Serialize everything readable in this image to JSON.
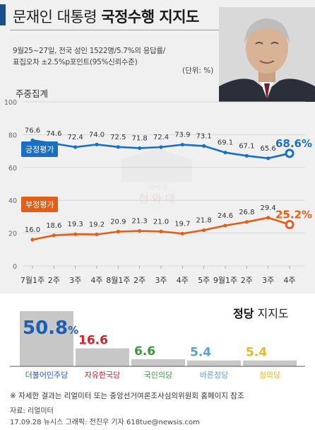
{
  "header": {
    "title_plain": "문재인 대통령 ",
    "title_bold": "국정수행 지지도",
    "meta_line1": "9월25~27일, 전국 성인 1522명/5.7%의 응답률/",
    "meta_line2": "표집오차 ±2.5%p포인트(95%신뢰수준)",
    "unit": "(단위: %)"
  },
  "colors": {
    "approve": "#1a6fc0",
    "disapprove": "#e0601a",
    "header_bar": "#1a4f8b",
    "party_bar": "#c7c7c7"
  },
  "weekly_label": "주중집계",
  "chart_data": {
    "type": "line",
    "categories": [
      "7월1주",
      "2주",
      "3주",
      "4주",
      "8월1주",
      "2주",
      "3주",
      "4주",
      "5주",
      "9월1주",
      "2주",
      "3주",
      "4주"
    ],
    "ylim": [
      0,
      100
    ],
    "yticks": [
      "0",
      "20",
      "40",
      "60",
      "80",
      "100"
    ],
    "series": [
      {
        "name": "긍정평가",
        "values": [
          76.6,
          74.6,
          72.4,
          74.0,
          72.5,
          71.8,
          72.4,
          73.9,
          73.1,
          69.1,
          67.1,
          65.6,
          68.6
        ],
        "labels": [
          "76.6",
          "74.6",
          "72.4",
          "74.0",
          "72.5",
          "71.8",
          "72.4",
          "73.9",
          "73.1",
          "69.1",
          "67.1",
          "65.6",
          "68.6%"
        ]
      },
      {
        "name": "부정평가",
        "values": [
          16.0,
          18.6,
          19.3,
          19.2,
          20.9,
          21.3,
          21.0,
          19.7,
          21.8,
          24.6,
          26.8,
          29.4,
          25.2
        ],
        "labels": [
          "16.0",
          "18.6",
          "19.3",
          "19.2",
          "20.9",
          "21.3",
          "21.0",
          "19.7",
          "21.8",
          "24.6",
          "26.8",
          "29.4",
          "25.2%"
        ]
      }
    ]
  },
  "watermark": {
    "line1": "대한민국",
    "line2": "청 와 대"
  },
  "party": {
    "title_bold": "정당",
    "title_plain": " 지지도",
    "items": [
      {
        "name": "더불어민주당",
        "value": 50.8,
        "value_label": "50.8",
        "suffix": "%",
        "color": "#1a5fb4"
      },
      {
        "name": "자유한국당",
        "value": 16.6,
        "value_label": "16.6",
        "suffix": "",
        "color": "#d0202a"
      },
      {
        "name": "국민의당",
        "value": 6.6,
        "value_label": "6.6",
        "suffix": "",
        "color": "#3a9a3a"
      },
      {
        "name": "바른정당",
        "value": 5.4,
        "value_label": "5.4",
        "suffix": "",
        "color": "#5aa0d8"
      },
      {
        "name": "정의당",
        "value": 5.4,
        "value_label": "5.4",
        "suffix": "",
        "color": "#e8b820"
      }
    ]
  },
  "footer": {
    "footnote": "※ 자세한 결과는 리얼미터 또는 중앙선거여론조사심의위원회 홈페이지 참조",
    "source": "자료: 리얼미터",
    "credit": "17.09.28 뉴시스 그래픽: 전진우 기자 618tue@newsis.com"
  }
}
